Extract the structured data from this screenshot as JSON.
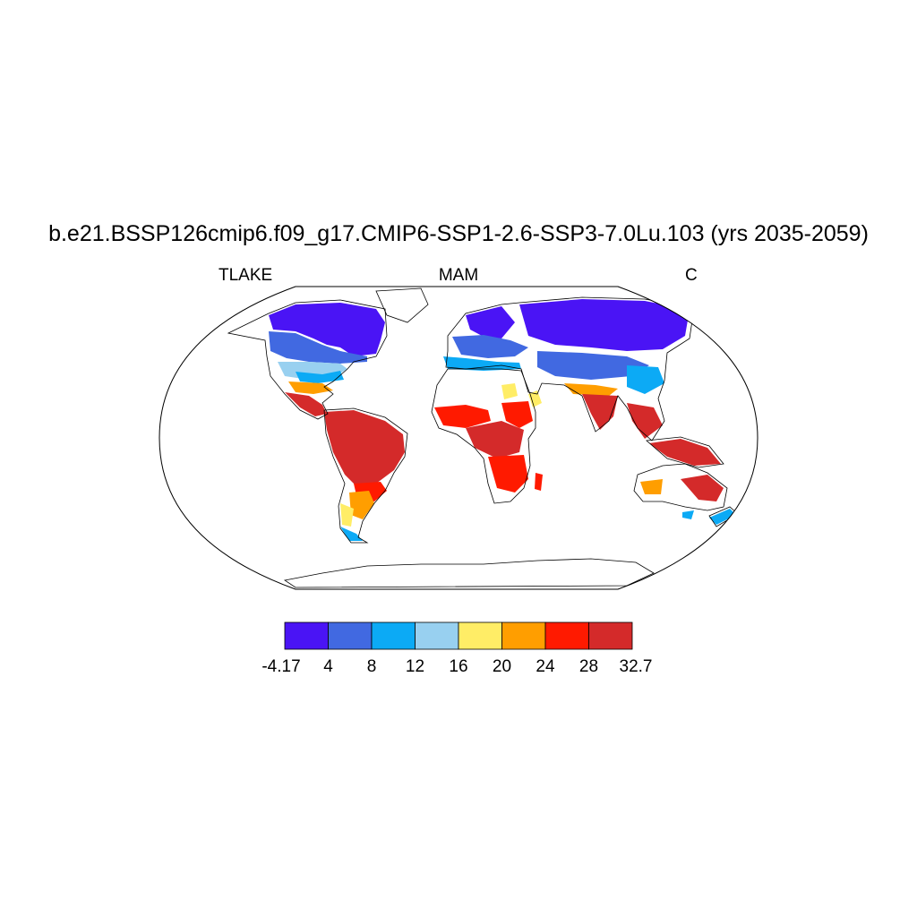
{
  "title": "b.e21.BSSP126cmip6.f09_g17.CMIP6-SSP1-2.6-SSP3-7.0Lu.103 (yrs 2035-2059)",
  "left_label": "TLAKE",
  "center_label": "MAM",
  "right_label": "C",
  "colorbar": {
    "colors": [
      "#4a14f5",
      "#4169e1",
      "#0caaf5",
      "#98d0f0",
      "#ffed66",
      "#ff9e00",
      "#ff1a00",
      "#d42a2a"
    ],
    "tick_labels": [
      "-4.17",
      "4",
      "8",
      "12",
      "16",
      "20",
      "24",
      "28",
      "32.7"
    ]
  }
}
